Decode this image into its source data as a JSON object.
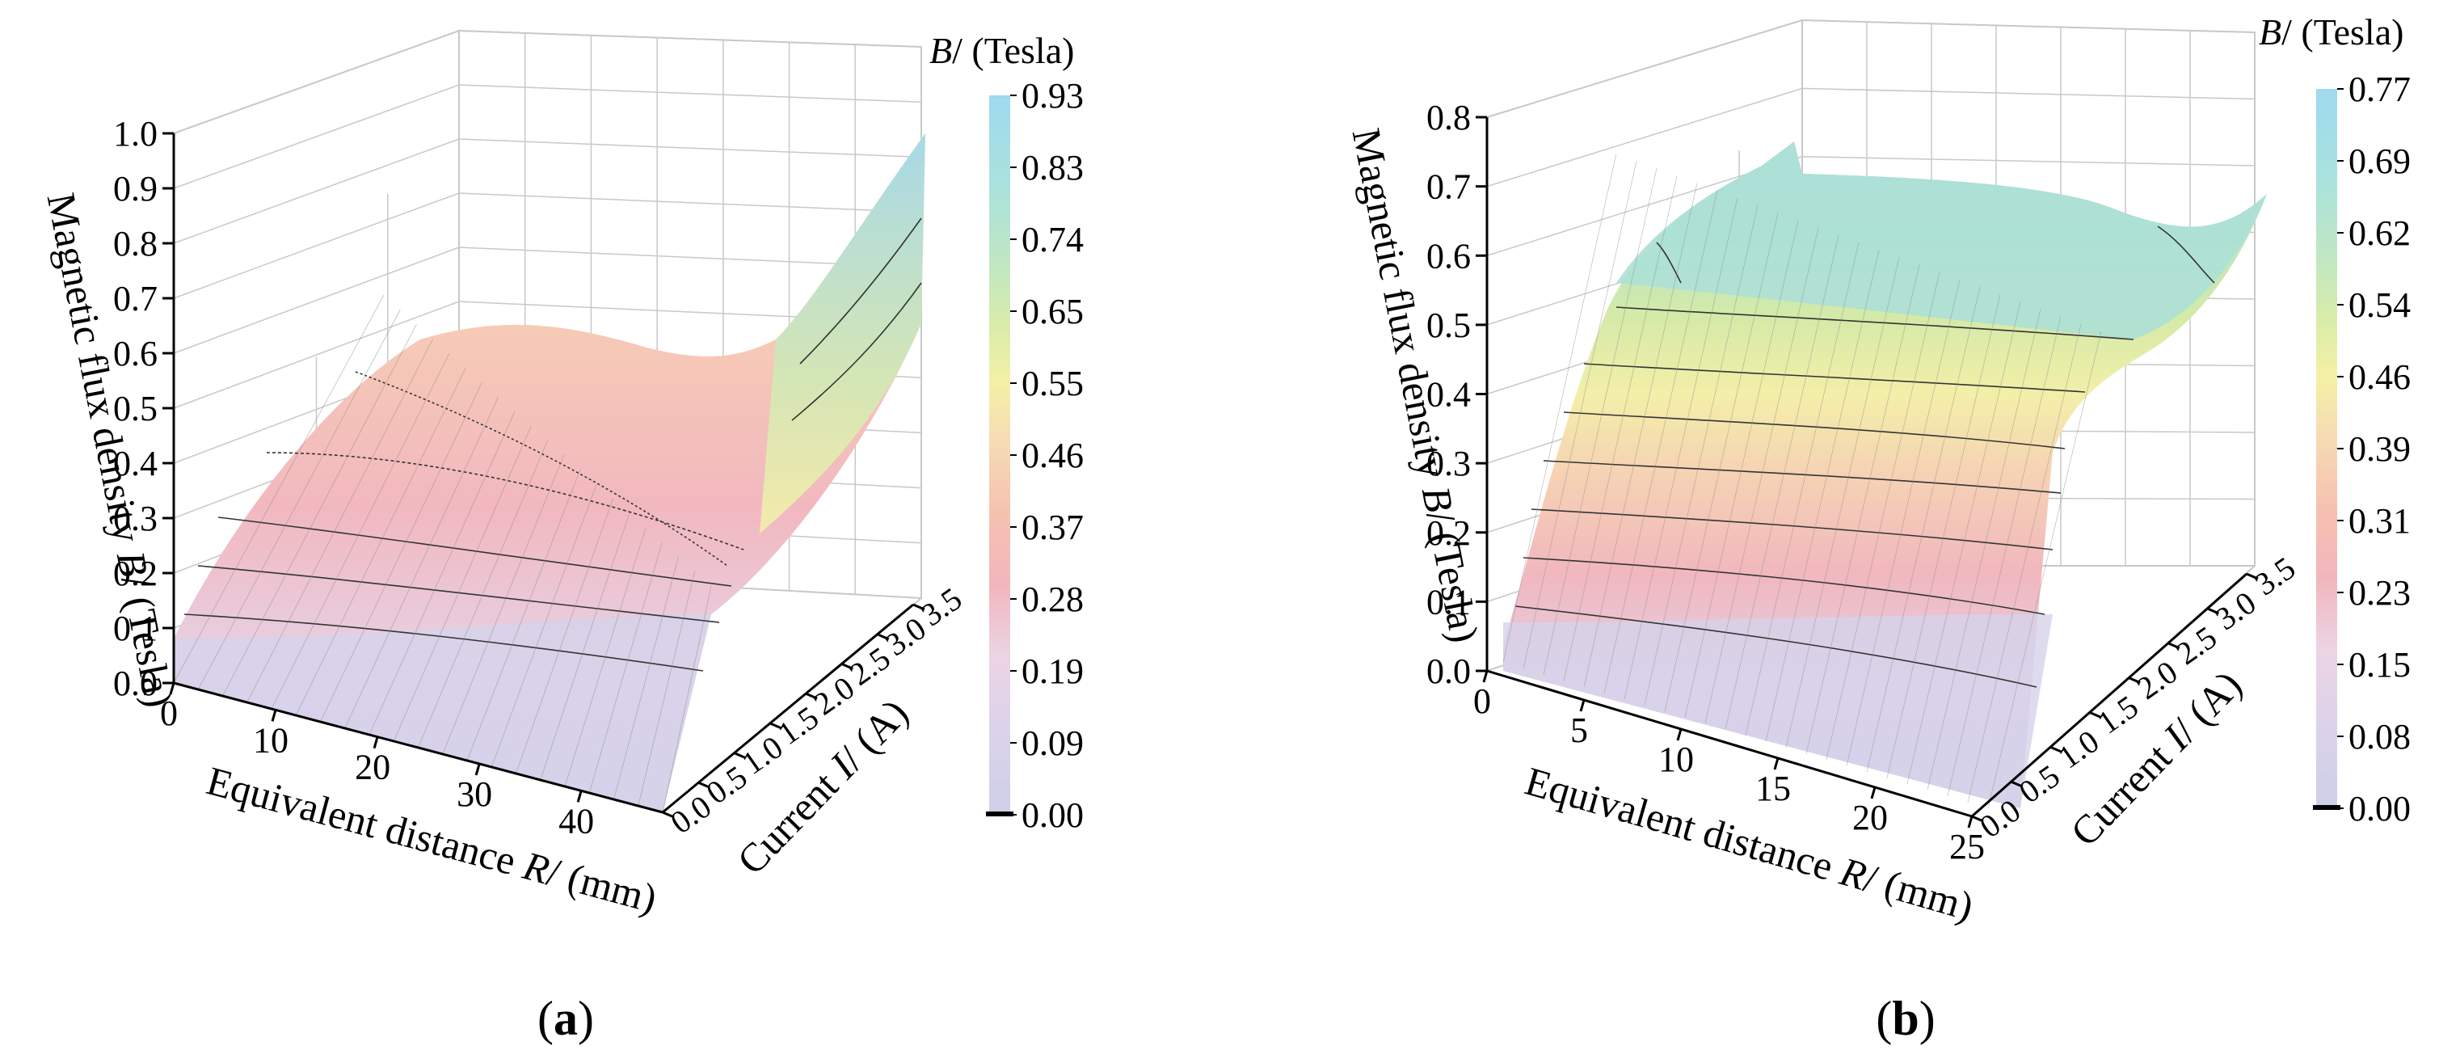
{
  "chart_data": [
    {
      "type": "surface",
      "panel_label": "a",
      "zlabel_text": "Magnetic flux density ",
      "zlabel_var": "B",
      "zlabel_unit": "/ (Tesla)",
      "xlabel_text": "Equivalent distance ",
      "xlabel_var": "R",
      "xlabel_unit": "/ (mm)",
      "ylabel_text": "Current ",
      "ylabel_var": "I",
      "ylabel_unit": "/ (A)",
      "x_ticks": [
        "0",
        "10",
        "20",
        "30",
        "40"
      ],
      "y_ticks": [
        "0.0",
        "0.5",
        "1.0",
        "1.5",
        "2.0",
        "2.5",
        "3.0",
        "3.5"
      ],
      "z_ticks": [
        "0.0",
        "0.1",
        "0.2",
        "0.3",
        "0.4",
        "0.5",
        "0.6",
        "0.7",
        "0.8",
        "0.9",
        "1.0"
      ],
      "xlim": [
        0,
        48
      ],
      "ylim": [
        0,
        3.5
      ],
      "zlim": [
        0,
        1.0
      ],
      "colorbar_title_var": "B",
      "colorbar_title_unit": "/ (Tesla)",
      "colorbar_ticks": [
        "0.93",
        "0.83",
        "0.74",
        "0.65",
        "0.55",
        "0.46",
        "0.37",
        "0.28",
        "0.19",
        "0.09",
        "0.00"
      ],
      "surface_description_values": {
        "B_at_R0_I0": 0.0,
        "B_at_R0_I3.5": 0.55,
        "B_peak_at_R48_I3.5": 0.93,
        "B_at_R48_I0": 0.0
      }
    },
    {
      "type": "surface",
      "panel_label": "b",
      "zlabel_text": "Magnetic flux density ",
      "zlabel_var": "B",
      "zlabel_unit": "/ (Tesla)",
      "xlabel_text": "Equivalent distance ",
      "xlabel_var": "R",
      "xlabel_unit": "/ (mm)",
      "ylabel_text": "Current ",
      "ylabel_var": "I",
      "ylabel_unit": "/ (A)",
      "x_ticks": [
        "0",
        "5",
        "10",
        "15",
        "20",
        "25"
      ],
      "y_ticks": [
        "0.0",
        "0.5",
        "1.0",
        "1.5",
        "2.0",
        "2.5",
        "3.0",
        "3.5"
      ],
      "z_ticks": [
        "0.0",
        "0.1",
        "0.2",
        "0.3",
        "0.4",
        "0.5",
        "0.6",
        "0.7",
        "0.8"
      ],
      "xlim": [
        0,
        25
      ],
      "ylim": [
        0,
        3.5
      ],
      "zlim": [
        0,
        0.8
      ],
      "colorbar_title_var": "B",
      "colorbar_title_unit": "/ (Tesla)",
      "colorbar_ticks": [
        "0.77",
        "0.69",
        "0.62",
        "0.54",
        "0.46",
        "0.39",
        "0.31",
        "0.23",
        "0.15",
        "0.08",
        "0.00"
      ],
      "surface_description_values": {
        "B_at_R0_I0": 0.0,
        "B_plateau_at_I3.5": 0.7,
        "B_peak_at_R25_I3.5": 0.77,
        "B_at_R25_I0": 0.0
      }
    }
  ]
}
